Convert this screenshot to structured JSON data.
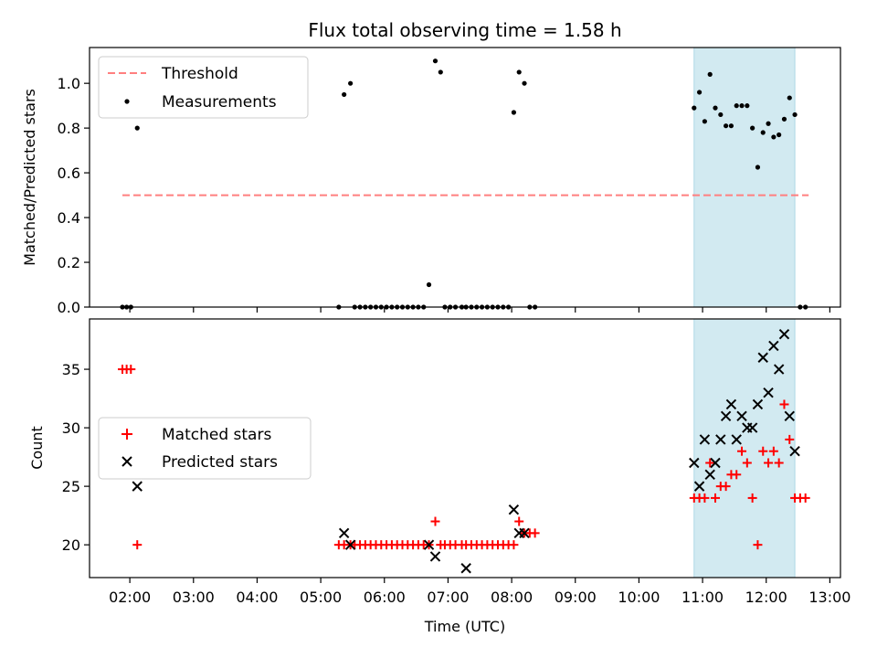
{
  "figure": {
    "title": "Flux total observing time = 1.58 h"
  },
  "chart_data": [
    {
      "type": "scatter",
      "panel": "top",
      "title": "Flux total observing time = 1.58 h",
      "xlabel": "",
      "ylabel": "Matched/Predicted stars",
      "xlim": [
        "01:22",
        "13:10"
      ],
      "ylim": [
        0.0,
        1.16
      ],
      "yticks": [
        0.0,
        0.2,
        0.4,
        0.6,
        0.8,
        1.0
      ],
      "grid": false,
      "legend_position": "top-left",
      "shaded_interval": {
        "start": "10:52",
        "end": "12:27",
        "color": "#add8e6"
      },
      "threshold": {
        "name": "Threshold",
        "value": 0.5,
        "x_start": "01:53",
        "x_end": "12:40",
        "color": "#ff7f7f",
        "style": "dashed"
      },
      "series": [
        {
          "name": "Measurements",
          "marker": "dot",
          "color": "#000000",
          "points": [
            [
              "01:53",
              0.0
            ],
            [
              "01:57",
              0.0
            ],
            [
              "02:01",
              0.0
            ],
            [
              "02:07",
              0.8
            ],
            [
              "05:17",
              0.0
            ],
            [
              "05:22",
              0.95
            ],
            [
              "05:28",
              1.0
            ],
            [
              "05:32",
              0.0
            ],
            [
              "05:37",
              0.0
            ],
            [
              "05:42",
              0.0
            ],
            [
              "05:47",
              0.0
            ],
            [
              "05:52",
              0.0
            ],
            [
              "05:57",
              0.0
            ],
            [
              "06:02",
              0.0
            ],
            [
              "06:07",
              0.0
            ],
            [
              "06:12",
              0.0
            ],
            [
              "06:17",
              0.0
            ],
            [
              "06:22",
              0.0
            ],
            [
              "06:27",
              0.0
            ],
            [
              "06:32",
              0.0
            ],
            [
              "06:37",
              0.0
            ],
            [
              "06:42",
              0.1
            ],
            [
              "06:48",
              1.1
            ],
            [
              "06:53",
              1.05
            ],
            [
              "06:57",
              0.0
            ],
            [
              "07:02",
              0.0
            ],
            [
              "07:07",
              0.0
            ],
            [
              "07:13",
              0.0
            ],
            [
              "07:17",
              0.0
            ],
            [
              "07:22",
              0.0
            ],
            [
              "07:27",
              0.0
            ],
            [
              "07:32",
              0.0
            ],
            [
              "07:37",
              0.0
            ],
            [
              "07:42",
              0.0
            ],
            [
              "07:47",
              0.0
            ],
            [
              "07:52",
              0.0
            ],
            [
              "07:57",
              0.0
            ],
            [
              "08:02",
              0.87
            ],
            [
              "08:07",
              1.05
            ],
            [
              "08:12",
              1.0
            ],
            [
              "08:17",
              0.0
            ],
            [
              "08:22",
              0.0
            ],
            [
              "10:52",
              0.89
            ],
            [
              "10:57",
              0.96
            ],
            [
              "11:02",
              0.83
            ],
            [
              "11:07",
              1.04
            ],
            [
              "11:12",
              0.89
            ],
            [
              "11:17",
              0.86
            ],
            [
              "11:22",
              0.81
            ],
            [
              "11:27",
              0.81
            ],
            [
              "11:32",
              0.9
            ],
            [
              "11:37",
              0.9
            ],
            [
              "11:42",
              0.9
            ],
            [
              "11:47",
              0.8
            ],
            [
              "11:52",
              0.625
            ],
            [
              "11:57",
              0.78
            ],
            [
              "12:02",
              0.82
            ],
            [
              "12:07",
              0.76
            ],
            [
              "12:12",
              0.77
            ],
            [
              "12:17",
              0.84
            ],
            [
              "12:22",
              0.935
            ],
            [
              "12:27",
              0.86
            ],
            [
              "12:32",
              0.0
            ],
            [
              "12:37",
              0.0
            ]
          ]
        }
      ]
    },
    {
      "type": "scatter",
      "panel": "bottom",
      "xlabel": "Time (UTC)",
      "ylabel": "Count",
      "xlim": [
        "01:22",
        "13:10"
      ],
      "ylim": [
        17.2,
        39.3
      ],
      "yticks": [
        20,
        25,
        30,
        35
      ],
      "xticks": [
        "02:00",
        "03:00",
        "04:00",
        "05:00",
        "06:00",
        "07:00",
        "08:00",
        "09:00",
        "10:00",
        "11:00",
        "12:00",
        "13:00"
      ],
      "grid": false,
      "legend_position": "center-left",
      "shaded_interval": {
        "start": "10:52",
        "end": "12:27",
        "color": "#add8e6"
      },
      "series": [
        {
          "name": "Matched stars",
          "marker": "plus",
          "color": "#ff0000",
          "points": [
            [
              "01:53",
              35
            ],
            [
              "01:57",
              35
            ],
            [
              "02:01",
              35
            ],
            [
              "02:07",
              20
            ],
            [
              "05:17",
              20
            ],
            [
              "05:22",
              20
            ],
            [
              "05:28",
              20
            ],
            [
              "05:32",
              20
            ],
            [
              "05:37",
              20
            ],
            [
              "05:42",
              20
            ],
            [
              "05:47",
              20
            ],
            [
              "05:52",
              20
            ],
            [
              "05:57",
              20
            ],
            [
              "06:02",
              20
            ],
            [
              "06:07",
              20
            ],
            [
              "06:12",
              20
            ],
            [
              "06:17",
              20
            ],
            [
              "06:22",
              20
            ],
            [
              "06:27",
              20
            ],
            [
              "06:32",
              20
            ],
            [
              "06:37",
              20
            ],
            [
              "06:42",
              20
            ],
            [
              "06:48",
              22
            ],
            [
              "06:53",
              20
            ],
            [
              "06:57",
              20
            ],
            [
              "07:02",
              20
            ],
            [
              "07:07",
              20
            ],
            [
              "07:13",
              20
            ],
            [
              "07:17",
              20
            ],
            [
              "07:22",
              20
            ],
            [
              "07:27",
              20
            ],
            [
              "07:32",
              20
            ],
            [
              "07:37",
              20
            ],
            [
              "07:42",
              20
            ],
            [
              "07:47",
              20
            ],
            [
              "07:52",
              20
            ],
            [
              "07:57",
              20
            ],
            [
              "08:02",
              20
            ],
            [
              "08:07",
              22
            ],
            [
              "08:12",
              21
            ],
            [
              "08:17",
              21
            ],
            [
              "08:22",
              21
            ],
            [
              "10:52",
              24
            ],
            [
              "10:57",
              24
            ],
            [
              "11:02",
              24
            ],
            [
              "11:07",
              27
            ],
            [
              "11:12",
              24
            ],
            [
              "11:17",
              25
            ],
            [
              "11:22",
              25
            ],
            [
              "11:27",
              26
            ],
            [
              "11:32",
              26
            ],
            [
              "11:37",
              28
            ],
            [
              "11:42",
              27
            ],
            [
              "11:47",
              24
            ],
            [
              "11:52",
              20
            ],
            [
              "11:57",
              28
            ],
            [
              "12:02",
              27
            ],
            [
              "12:07",
              28
            ],
            [
              "12:12",
              27
            ],
            [
              "12:17",
              32
            ],
            [
              "12:22",
              29
            ],
            [
              "12:27",
              24
            ],
            [
              "12:32",
              24
            ],
            [
              "12:37",
              24
            ]
          ]
        },
        {
          "name": "Predicted stars",
          "marker": "x",
          "color": "#000000",
          "points": [
            [
              "02:07",
              25
            ],
            [
              "05:22",
              21
            ],
            [
              "05:28",
              20
            ],
            [
              "06:42",
              20
            ],
            [
              "06:48",
              19
            ],
            [
              "07:17",
              18
            ],
            [
              "08:02",
              23
            ],
            [
              "08:07",
              21
            ],
            [
              "08:12",
              21
            ],
            [
              "10:52",
              27
            ],
            [
              "10:57",
              25
            ],
            [
              "11:02",
              29
            ],
            [
              "11:07",
              26
            ],
            [
              "11:12",
              27
            ],
            [
              "11:17",
              29
            ],
            [
              "11:22",
              31
            ],
            [
              "11:27",
              32
            ],
            [
              "11:32",
              29
            ],
            [
              "11:37",
              31
            ],
            [
              "11:42",
              30
            ],
            [
              "11:47",
              30
            ],
            [
              "11:52",
              32
            ],
            [
              "11:57",
              36
            ],
            [
              "12:02",
              33
            ],
            [
              "12:07",
              37
            ],
            [
              "12:12",
              35
            ],
            [
              "12:17",
              38
            ],
            [
              "12:22",
              31
            ],
            [
              "12:27",
              28
            ]
          ]
        }
      ]
    }
  ]
}
